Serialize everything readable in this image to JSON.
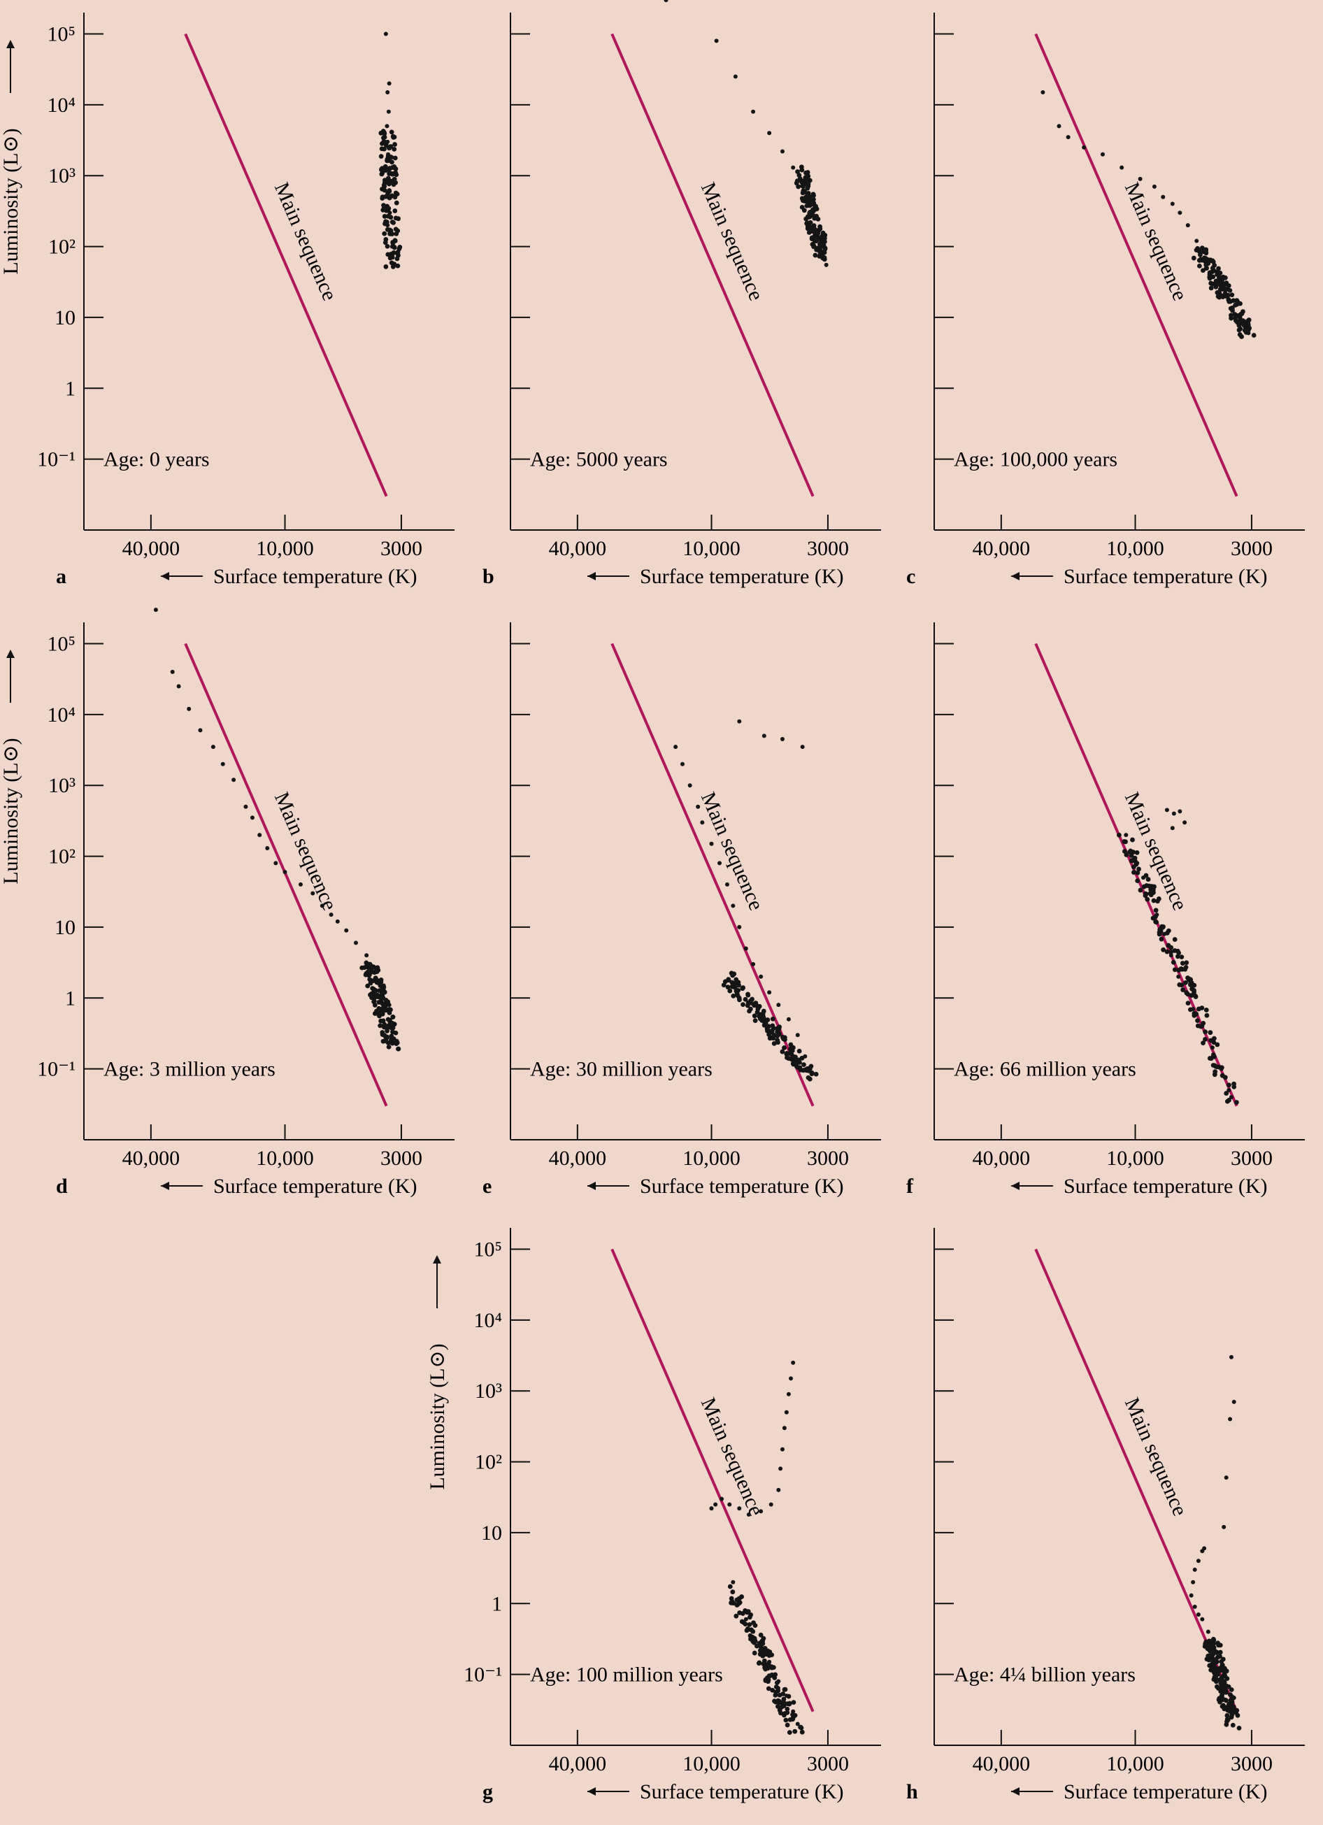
{
  "figure": {
    "background": "#f0d7cc",
    "main_sequence_color": "#b0175a",
    "point_color": "#151515"
  },
  "shared": {
    "xlabel": "Surface temperature (K)",
    "ylabel": "Luminosity (L⊙)",
    "main_sequence_label": "Main sequence",
    "x_tick_labels": [
      "40,000",
      "10,000",
      "3000"
    ],
    "y_tick_labels": [
      "10⁻¹",
      "1",
      "10",
      "10²",
      "10³",
      "10⁴",
      "10⁵"
    ]
  },
  "chart_data": [
    {
      "panel": "a",
      "type": "scatter",
      "age_label": "Age: 0 years",
      "show_y_labels": true,
      "x_axis": "surface temperature (K), decreasing to the right, log scale",
      "y_axis": "luminosity (L⊙), log scale",
      "xlim": [
        80000,
        2000
      ],
      "ylim": [
        0.01,
        200000
      ],
      "x_ticks": [
        40000,
        10000,
        3000
      ],
      "y_ticks": [
        0.1,
        1,
        10,
        100,
        1000,
        10000,
        100000
      ],
      "main_sequence": [
        [
          28000,
          100000
        ],
        [
          3500,
          0.03
        ]
      ],
      "points": [
        [
          3520,
          100000
        ],
        [
          3400,
          20000
        ],
        [
          3460,
          15000
        ],
        [
          3420,
          8000
        ],
        [
          3480,
          5000
        ],
        [
          3460,
          3000
        ],
        [
          3440,
          2000
        ],
        [
          3400,
          1200
        ],
        [
          3480,
          800
        ],
        [
          3420,
          500
        ],
        [
          3380,
          300
        ],
        [
          3460,
          200
        ],
        [
          3350,
          150
        ],
        [
          3300,
          100
        ],
        [
          3280,
          70
        ],
        [
          3260,
          55
        ]
      ],
      "cluster": [
        [
          3500,
          4000
        ],
        [
          3250,
          50
        ]
      ]
    },
    {
      "panel": "b",
      "type": "scatter",
      "age_label": "Age: 5000 years",
      "show_y_labels": false,
      "x_axis": "surface temperature (K), decreasing to the right, log scale",
      "y_axis": "luminosity (L⊙), log scale",
      "xlim": [
        80000,
        2000
      ],
      "ylim": [
        0.01,
        200000
      ],
      "x_ticks": [
        40000,
        10000,
        3000
      ],
      "y_ticks": [
        0.1,
        1,
        10,
        100,
        1000,
        10000,
        100000
      ],
      "main_sequence": [
        [
          28000,
          100000
        ],
        [
          3500,
          0.03
        ]
      ],
      "points": [
        [
          16000,
          300000
        ],
        [
          9500,
          80000
        ],
        [
          7800,
          25000
        ],
        [
          6500,
          8000
        ],
        [
          5500,
          4000
        ],
        [
          4800,
          2200
        ],
        [
          4300,
          1300
        ],
        [
          3900,
          800
        ],
        [
          3600,
          450
        ],
        [
          3400,
          250
        ],
        [
          3200,
          130
        ],
        [
          3100,
          70
        ],
        [
          3050,
          55
        ]
      ],
      "cluster": [
        [
          4000,
          1200
        ],
        [
          3100,
          60
        ]
      ]
    },
    {
      "panel": "c",
      "type": "scatter",
      "age_label": "Age: 100,000 years",
      "show_y_labels": false,
      "x_axis": "surface temperature (K), decreasing to the right, log scale",
      "y_axis": "luminosity (L⊙), log scale",
      "xlim": [
        80000,
        2000
      ],
      "ylim": [
        0.01,
        200000
      ],
      "x_ticks": [
        40000,
        10000,
        3000
      ],
      "y_ticks": [
        0.1,
        1,
        10,
        100,
        1000,
        10000,
        100000
      ],
      "main_sequence": [
        [
          28000,
          100000
        ],
        [
          3500,
          0.03
        ]
      ],
      "points": [
        [
          26000,
          15000
        ],
        [
          22000,
          5000
        ],
        [
          20000,
          3500
        ],
        [
          17000,
          2500
        ],
        [
          14000,
          2000
        ],
        [
          11500,
          1300
        ],
        [
          9500,
          900
        ],
        [
          8200,
          700
        ],
        [
          7500,
          500
        ],
        [
          6800,
          400
        ],
        [
          6300,
          300
        ],
        [
          5800,
          200
        ],
        [
          5300,
          120
        ],
        [
          4800,
          80
        ],
        [
          4300,
          40
        ],
        [
          3800,
          18
        ],
        [
          3400,
          10
        ],
        [
          3200,
          7
        ],
        [
          3100,
          6
        ]
      ],
      "cluster": [
        [
          5300,
          100
        ],
        [
          3100,
          6
        ]
      ]
    },
    {
      "panel": "d",
      "type": "scatter",
      "age_label": "Age: 3 million years",
      "show_y_labels": true,
      "x_axis": "surface temperature (K), decreasing to the right, log scale",
      "y_axis": "luminosity (L⊙), log scale",
      "xlim": [
        80000,
        2000
      ],
      "ylim": [
        0.01,
        200000
      ],
      "x_ticks": [
        40000,
        10000,
        3000
      ],
      "y_ticks": [
        0.1,
        1,
        10,
        100,
        1000,
        10000,
        100000
      ],
      "main_sequence": [
        [
          28000,
          100000
        ],
        [
          3500,
          0.03
        ]
      ],
      "points": [
        [
          38000,
          300000
        ],
        [
          32000,
          40000
        ],
        [
          30000,
          25000
        ],
        [
          27000,
          12000
        ],
        [
          24000,
          6000
        ],
        [
          21000,
          3500
        ],
        [
          19000,
          2000
        ],
        [
          17000,
          1200
        ],
        [
          15000,
          500
        ],
        [
          14000,
          350
        ],
        [
          13000,
          200
        ],
        [
          12000,
          130
        ],
        [
          11000,
          80
        ],
        [
          10000,
          60
        ],
        [
          8500,
          40
        ],
        [
          7500,
          30
        ],
        [
          6800,
          20
        ],
        [
          6200,
          15
        ],
        [
          5800,
          12
        ],
        [
          5300,
          9
        ],
        [
          4800,
          6
        ],
        [
          4300,
          4
        ],
        [
          3900,
          2.5
        ],
        [
          3600,
          1.5
        ],
        [
          3400,
          0.8
        ],
        [
          3300,
          0.4
        ],
        [
          3250,
          0.25
        ]
      ],
      "cluster": [
        [
          4200,
          3
        ],
        [
          3250,
          0.2
        ]
      ]
    },
    {
      "panel": "e",
      "type": "scatter",
      "age_label": "Age: 30 million years",
      "show_y_labels": false,
      "x_axis": "surface temperature (K), decreasing to the right, log scale",
      "y_axis": "luminosity (L⊙), log scale",
      "xlim": [
        80000,
        2000
      ],
      "ylim": [
        0.01,
        200000
      ],
      "x_ticks": [
        40000,
        10000,
        3000
      ],
      "y_ticks": [
        0.1,
        1,
        10,
        100,
        1000,
        10000,
        100000
      ],
      "main_sequence": [
        [
          28000,
          100000
        ],
        [
          3500,
          0.03
        ]
      ],
      "points": [
        [
          7500,
          8000
        ],
        [
          5800,
          5000
        ],
        [
          4800,
          4500
        ],
        [
          3900,
          3500
        ],
        [
          14500,
          3500
        ],
        [
          13500,
          2000
        ],
        [
          12500,
          1000
        ],
        [
          11500,
          500
        ],
        [
          11000,
          300
        ],
        [
          10000,
          150
        ],
        [
          9200,
          80
        ],
        [
          8500,
          40
        ],
        [
          8000,
          20
        ],
        [
          7500,
          10
        ],
        [
          7000,
          5
        ],
        [
          6500,
          3
        ],
        [
          6000,
          2
        ],
        [
          5500,
          1.2
        ],
        [
          5000,
          0.8
        ],
        [
          4500,
          0.5
        ],
        [
          4100,
          0.3
        ],
        [
          3800,
          0.15
        ],
        [
          3600,
          0.1
        ]
      ],
      "cluster": [
        [
          8500,
          2
        ],
        [
          3600,
          0.08
        ]
      ]
    },
    {
      "panel": "f",
      "type": "scatter",
      "age_label": "Age: 66 million years",
      "show_y_labels": false,
      "x_axis": "surface temperature (K), decreasing to the right, log scale",
      "y_axis": "luminosity (L⊙), log scale",
      "xlim": [
        80000,
        2000
      ],
      "ylim": [
        0.01,
        200000
      ],
      "x_ticks": [
        40000,
        10000,
        3000
      ],
      "y_ticks": [
        0.1,
        1,
        10,
        100,
        1000,
        10000,
        100000
      ],
      "main_sequence": [
        [
          28000,
          100000
        ],
        [
          3500,
          0.03
        ]
      ],
      "points": [
        [
          7200,
          450
        ],
        [
          6700,
          400
        ],
        [
          6300,
          430
        ],
        [
          6000,
          300
        ],
        [
          6800,
          250
        ],
        [
          11000,
          200
        ],
        [
          10500,
          120
        ],
        [
          9800,
          80
        ],
        [
          9200,
          50
        ],
        [
          8600,
          30
        ],
        [
          8000,
          15
        ],
        [
          7400,
          8
        ],
        [
          6900,
          4
        ],
        [
          6400,
          2
        ],
        [
          5900,
          1.2
        ],
        [
          5500,
          0.7
        ],
        [
          5000,
          0.4
        ],
        [
          4500,
          0.2
        ],
        [
          4100,
          0.1
        ],
        [
          3800,
          0.05
        ],
        [
          3700,
          0.04
        ]
      ],
      "cluster": [
        [
          11000,
          200
        ],
        [
          3600,
          0.035
        ]
      ]
    },
    {
      "panel": "g",
      "type": "scatter",
      "age_label": "Age: 100 million years",
      "show_y_labels": true,
      "x_axis": "surface temperature (K), decreasing to the right, log scale",
      "y_axis": "luminosity (L⊙), log scale",
      "xlim": [
        80000,
        2000
      ],
      "ylim": [
        0.01,
        200000
      ],
      "x_ticks": [
        40000,
        10000,
        3000
      ],
      "y_ticks": [
        0.1,
        1,
        10,
        100,
        1000,
        10000,
        100000
      ],
      "main_sequence": [
        [
          28000,
          100000
        ],
        [
          3500,
          0.03
        ]
      ],
      "points": [
        [
          4300,
          2500
        ],
        [
          4400,
          1500
        ],
        [
          4500,
          900
        ],
        [
          4600,
          500
        ],
        [
          4700,
          300
        ],
        [
          4800,
          150
        ],
        [
          4900,
          80
        ],
        [
          5000,
          40
        ],
        [
          5400,
          25
        ],
        [
          6000,
          20
        ],
        [
          6800,
          18
        ],
        [
          7500,
          22
        ],
        [
          8300,
          25
        ],
        [
          9000,
          30
        ],
        [
          9600,
          25
        ],
        [
          10000,
          22
        ],
        [
          8000,
          2
        ],
        [
          7500,
          1
        ],
        [
          7000,
          0.6
        ],
        [
          6500,
          0.4
        ],
        [
          6000,
          0.25
        ],
        [
          5500,
          0.15
        ],
        [
          5000,
          0.08
        ],
        [
          4600,
          0.05
        ],
        [
          4300,
          0.03
        ],
        [
          4100,
          0.02
        ]
      ],
      "cluster": [
        [
          8000,
          1.5
        ],
        [
          4100,
          0.015
        ]
      ]
    },
    {
      "panel": "h",
      "type": "scatter",
      "age_label": "Age: 4¼ billion years",
      "show_y_labels": false,
      "x_axis": "surface temperature (K), decreasing to the right, log scale",
      "y_axis": "luminosity (L⊙), log scale",
      "xlim": [
        80000,
        2000
      ],
      "ylim": [
        0.01,
        200000
      ],
      "x_ticks": [
        40000,
        10000,
        3000
      ],
      "y_ticks": [
        0.1,
        1,
        10,
        100,
        1000,
        10000,
        100000
      ],
      "main_sequence": [
        [
          28000,
          100000
        ],
        [
          3500,
          0.03
        ]
      ],
      "points": [
        [
          3700,
          3000
        ],
        [
          3600,
          700
        ],
        [
          3750,
          400
        ],
        [
          3900,
          60
        ],
        [
          4000,
          12
        ],
        [
          4900,
          6
        ],
        [
          5000,
          5.5
        ],
        [
          5200,
          4
        ],
        [
          5400,
          3
        ],
        [
          5500,
          2
        ],
        [
          5600,
          1.3
        ],
        [
          5400,
          0.9
        ],
        [
          5200,
          0.7
        ],
        [
          5000,
          0.6
        ],
        [
          4700,
          0.4
        ],
        [
          4500,
          0.3
        ],
        [
          4300,
          0.2
        ],
        [
          4100,
          0.12
        ],
        [
          3900,
          0.07
        ],
        [
          3700,
          0.05
        ],
        [
          3600,
          0.035
        ]
      ],
      "cluster": [
        [
          4600,
          0.3
        ],
        [
          3600,
          0.02
        ]
      ]
    }
  ]
}
